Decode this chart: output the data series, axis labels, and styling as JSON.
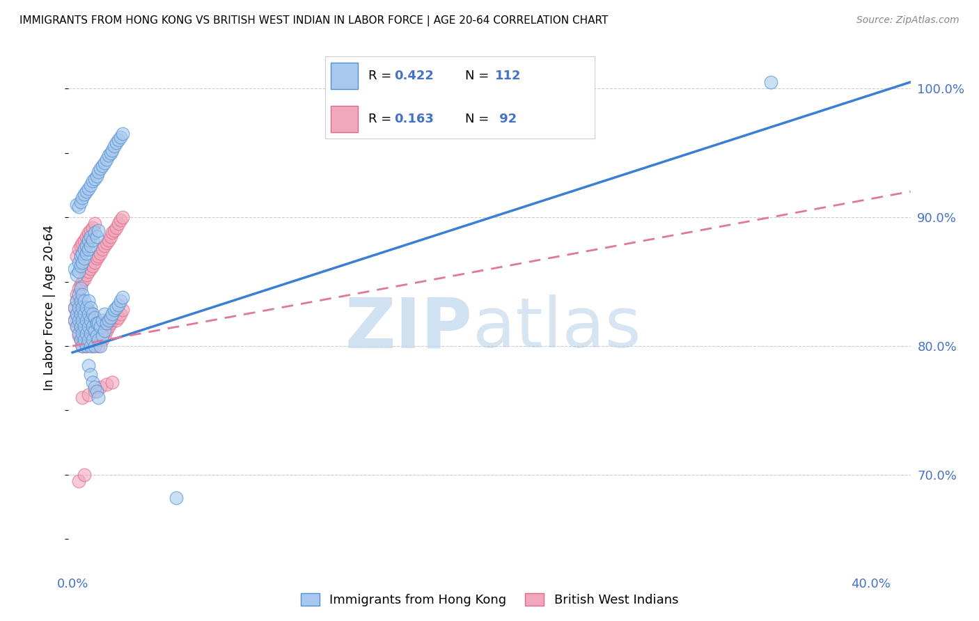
{
  "title": "IMMIGRANTS FROM HONG KONG VS BRITISH WEST INDIAN IN LABOR FORCE | AGE 20-64 CORRELATION CHART",
  "source": "Source: ZipAtlas.com",
  "ylabel": "In Labor Force | Age 20-64",
  "xlim": [
    -0.002,
    0.42
  ],
  "ylim": [
    0.625,
    1.035
  ],
  "x_ticks": [
    0.0,
    0.05,
    0.1,
    0.15,
    0.2,
    0.25,
    0.3,
    0.35,
    0.4
  ],
  "y_ticks": [
    0.7,
    0.8,
    0.9,
    1.0
  ],
  "color_hk": "#A8C8EE",
  "color_bwi": "#F0A8BC",
  "color_hk_edge": "#5090D0",
  "color_bwi_edge": "#E06888",
  "color_hk_line": "#3A7FD5",
  "color_bwi_line": "#E07898",
  "R_hk": 0.422,
  "N_hk": 112,
  "R_bwi": 0.163,
  "N_bwi": 92,
  "legend_label_hk": "Immigrants from Hong Kong",
  "legend_label_bwi": "British West Indians",
  "hk_line_x0": 0.0,
  "hk_line_y0": 0.795,
  "hk_line_x1": 0.42,
  "hk_line_y1": 1.005,
  "bwi_line_x0": 0.0,
  "bwi_line_y0": 0.8,
  "bwi_line_x1": 0.42,
  "bwi_line_y1": 0.92,
  "hk_x": [
    0.001,
    0.001,
    0.002,
    0.002,
    0.002,
    0.003,
    0.003,
    0.003,
    0.003,
    0.004,
    0.004,
    0.004,
    0.004,
    0.004,
    0.005,
    0.005,
    0.005,
    0.005,
    0.005,
    0.006,
    0.006,
    0.006,
    0.006,
    0.007,
    0.007,
    0.007,
    0.007,
    0.008,
    0.008,
    0.008,
    0.008,
    0.009,
    0.009,
    0.009,
    0.009,
    0.01,
    0.01,
    0.01,
    0.011,
    0.011,
    0.011,
    0.012,
    0.012,
    0.013,
    0.013,
    0.014,
    0.014,
    0.015,
    0.015,
    0.016,
    0.016,
    0.017,
    0.018,
    0.019,
    0.02,
    0.021,
    0.022,
    0.023,
    0.024,
    0.025,
    0.001,
    0.002,
    0.003,
    0.003,
    0.004,
    0.004,
    0.005,
    0.005,
    0.006,
    0.006,
    0.007,
    0.007,
    0.008,
    0.008,
    0.009,
    0.009,
    0.01,
    0.011,
    0.012,
    0.013,
    0.002,
    0.003,
    0.004,
    0.005,
    0.006,
    0.007,
    0.008,
    0.009,
    0.01,
    0.011,
    0.012,
    0.013,
    0.014,
    0.015,
    0.016,
    0.017,
    0.018,
    0.019,
    0.02,
    0.021,
    0.022,
    0.023,
    0.024,
    0.025,
    0.008,
    0.009,
    0.01,
    0.011,
    0.012,
    0.013,
    0.35,
    0.052
  ],
  "hk_y": [
    0.82,
    0.83,
    0.815,
    0.825,
    0.835,
    0.81,
    0.82,
    0.83,
    0.84,
    0.805,
    0.815,
    0.825,
    0.835,
    0.845,
    0.8,
    0.81,
    0.82,
    0.83,
    0.84,
    0.805,
    0.815,
    0.825,
    0.835,
    0.8,
    0.81,
    0.82,
    0.83,
    0.805,
    0.815,
    0.825,
    0.835,
    0.8,
    0.81,
    0.82,
    0.83,
    0.805,
    0.815,
    0.825,
    0.8,
    0.812,
    0.822,
    0.808,
    0.818,
    0.805,
    0.818,
    0.8,
    0.815,
    0.808,
    0.82,
    0.812,
    0.825,
    0.818,
    0.82,
    0.822,
    0.825,
    0.828,
    0.83,
    0.832,
    0.835,
    0.838,
    0.86,
    0.855,
    0.858,
    0.865,
    0.862,
    0.87,
    0.865,
    0.872,
    0.868,
    0.875,
    0.872,
    0.878,
    0.875,
    0.882,
    0.878,
    0.885,
    0.882,
    0.888,
    0.885,
    0.89,
    0.91,
    0.908,
    0.912,
    0.915,
    0.918,
    0.92,
    0.922,
    0.925,
    0.928,
    0.93,
    0.932,
    0.935,
    0.938,
    0.94,
    0.942,
    0.945,
    0.948,
    0.95,
    0.952,
    0.955,
    0.958,
    0.96,
    0.962,
    0.965,
    0.785,
    0.778,
    0.772,
    0.768,
    0.765,
    0.76,
    1.005,
    0.682
  ],
  "bwi_x": [
    0.001,
    0.001,
    0.002,
    0.002,
    0.002,
    0.003,
    0.003,
    0.003,
    0.004,
    0.004,
    0.004,
    0.005,
    0.005,
    0.005,
    0.005,
    0.006,
    0.006,
    0.006,
    0.007,
    0.007,
    0.007,
    0.008,
    0.008,
    0.008,
    0.009,
    0.009,
    0.009,
    0.01,
    0.01,
    0.011,
    0.011,
    0.012,
    0.012,
    0.013,
    0.013,
    0.014,
    0.014,
    0.015,
    0.015,
    0.016,
    0.016,
    0.017,
    0.018,
    0.019,
    0.02,
    0.021,
    0.022,
    0.023,
    0.024,
    0.025,
    0.002,
    0.003,
    0.004,
    0.005,
    0.006,
    0.007,
    0.008,
    0.009,
    0.01,
    0.011,
    0.002,
    0.003,
    0.004,
    0.005,
    0.006,
    0.007,
    0.008,
    0.009,
    0.01,
    0.011,
    0.012,
    0.013,
    0.014,
    0.015,
    0.016,
    0.017,
    0.018,
    0.019,
    0.02,
    0.021,
    0.022,
    0.023,
    0.024,
    0.025,
    0.005,
    0.008,
    0.011,
    0.014,
    0.017,
    0.02,
    0.003,
    0.006
  ],
  "bwi_y": [
    0.82,
    0.83,
    0.815,
    0.825,
    0.835,
    0.808,
    0.818,
    0.828,
    0.805,
    0.815,
    0.825,
    0.8,
    0.81,
    0.82,
    0.83,
    0.805,
    0.815,
    0.825,
    0.8,
    0.812,
    0.822,
    0.808,
    0.818,
    0.828,
    0.805,
    0.815,
    0.825,
    0.8,
    0.812,
    0.808,
    0.818,
    0.805,
    0.815,
    0.8,
    0.812,
    0.808,
    0.818,
    0.805,
    0.815,
    0.808,
    0.818,
    0.812,
    0.815,
    0.818,
    0.82,
    0.822,
    0.82,
    0.822,
    0.825,
    0.828,
    0.87,
    0.875,
    0.878,
    0.88,
    0.882,
    0.885,
    0.888,
    0.89,
    0.892,
    0.895,
    0.84,
    0.845,
    0.848,
    0.85,
    0.852,
    0.855,
    0.858,
    0.86,
    0.862,
    0.865,
    0.868,
    0.87,
    0.872,
    0.875,
    0.878,
    0.88,
    0.882,
    0.885,
    0.888,
    0.89,
    0.892,
    0.895,
    0.898,
    0.9,
    0.76,
    0.762,
    0.765,
    0.768,
    0.77,
    0.772,
    0.695,
    0.7
  ]
}
